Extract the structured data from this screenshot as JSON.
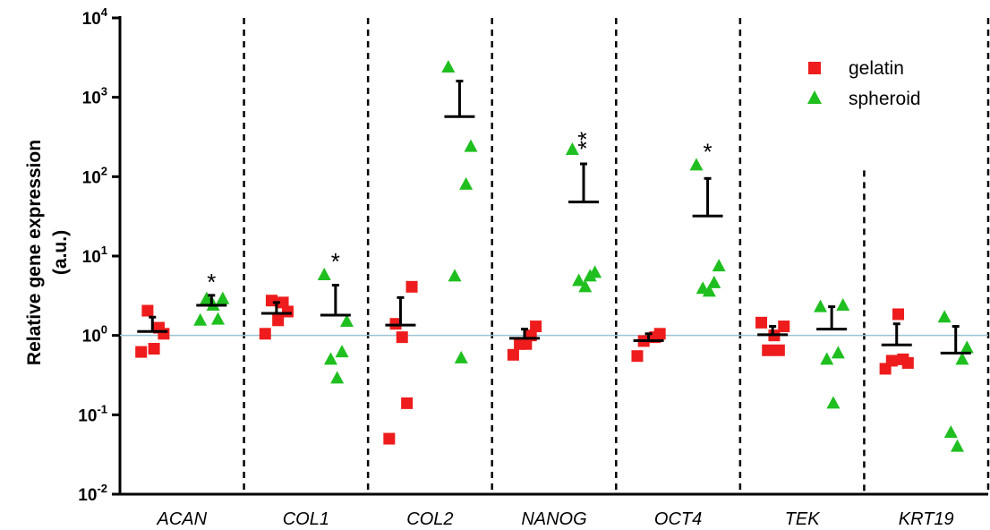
{
  "chart_data": {
    "type": "scatter",
    "ylabel_line1": "Relative gene expression",
    "ylabel_line2": "(a.u.)",
    "yscale": "log",
    "ylim": [
      0.01,
      10000
    ],
    "yticks": [
      {
        "base": "10",
        "exp": "-2"
      },
      {
        "base": "10",
        "exp": "-1"
      },
      {
        "base": "10",
        "exp": "0"
      },
      {
        "base": "10",
        "exp": "1"
      },
      {
        "base": "10",
        "exp": "2"
      },
      {
        "base": "10",
        "exp": "3"
      },
      {
        "base": "10",
        "exp": "4"
      }
    ],
    "reference_line": 1,
    "categories": [
      "ACAN",
      "COL1",
      "COL2",
      "NANOG",
      "OCT4",
      "TEK",
      "KRT19"
    ],
    "legend": [
      {
        "label": "gelatin",
        "color": "#ee1c1c",
        "marker": "square"
      },
      {
        "label": "spheroid",
        "color": "#1fbf1f",
        "marker": "triangle"
      }
    ],
    "legend_position": "top-right",
    "series": [
      {
        "name": "gelatin",
        "color": "#ee1c1c",
        "marker": "square",
        "points": [
          [
            0.62,
            1.05,
            1.25,
            2.05,
            0.68
          ],
          [
            1.05,
            2.0,
            2.6,
            2.75,
            1.55
          ],
          [
            0.05,
            4.1,
            0.14,
            1.4,
            0.95
          ],
          [
            0.57,
            1.3,
            1.0,
            0.78,
            0.78
          ],
          [
            0.55,
            1.05,
            0.95,
            0.85
          ],
          [
            1.45,
            1.3,
            0.65,
            0.65,
            1.0
          ],
          [
            0.38,
            0.45,
            0.5,
            0.48,
            1.85
          ]
        ],
        "mean": [
          1.12,
          1.9,
          1.35,
          0.92,
          0.86,
          1.02,
          0.76
        ],
        "upper": [
          1.7,
          2.6,
          3.0,
          1.2,
          1.05,
          1.3,
          1.4
        ]
      },
      {
        "name": "spheroid",
        "color": "#1fbf1f",
        "marker": "triangle",
        "points": [
          [
            1.55,
            2.9,
            1.6,
            2.9,
            2.4
          ],
          [
            5.8,
            1.5,
            0.62,
            0.5,
            0.29
          ],
          [
            2400,
            240,
            80,
            5.6,
            0.52
          ],
          [
            220,
            6.2,
            5.6,
            4.9,
            4.1
          ],
          [
            140,
            7.5,
            4.6,
            3.9,
            3.6
          ],
          [
            2.3,
            2.4,
            0.6,
            0.5,
            0.14
          ],
          [
            1.7,
            0.7,
            0.5,
            0.06,
            0.04
          ]
        ],
        "mean": [
          2.4,
          1.8,
          570,
          48,
          32,
          1.2,
          0.6
        ],
        "upper": [
          3.2,
          4.3,
          1600,
          145,
          95,
          2.3,
          1.3
        ]
      }
    ],
    "annotations": [
      {
        "category": "ACAN",
        "series": "spheroid",
        "text": "*"
      },
      {
        "category": "COL1",
        "series": "spheroid",
        "text": "*"
      },
      {
        "category": "NANOG",
        "series": "spheroid",
        "text": "**"
      },
      {
        "category": "OCT4",
        "series": "spheroid",
        "text": "*"
      }
    ],
    "grid": false
  }
}
